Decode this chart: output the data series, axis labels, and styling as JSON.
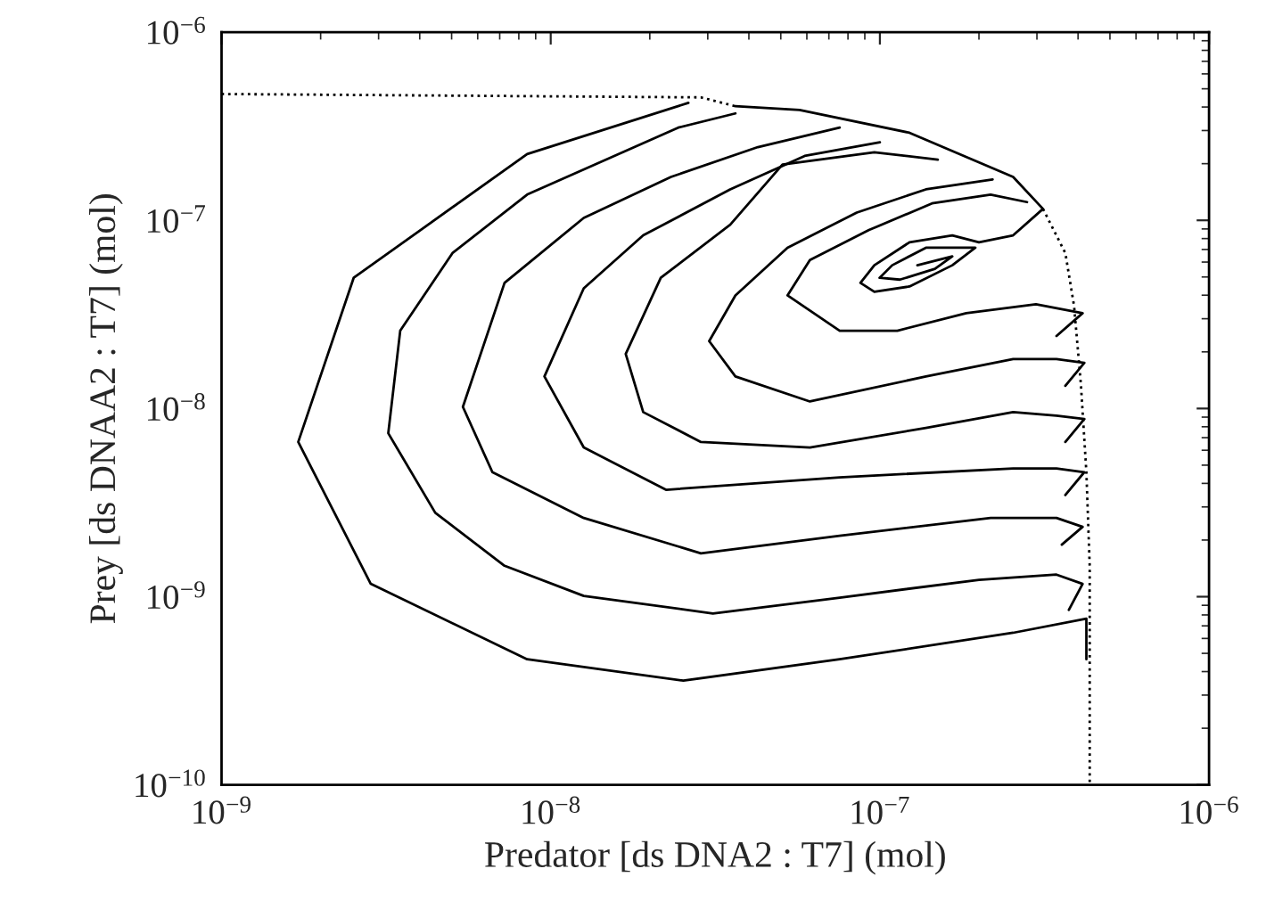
{
  "chart_data": {
    "type": "line",
    "xlabel": "Predator [ds DNA2 : T7] (mol)",
    "ylabel": "Prey [ds DNAA2 : T7] (mol)",
    "log": "xy",
    "xlim": [
      1e-09,
      1e-06
    ],
    "ylim": [
      1e-10,
      1e-06
    ],
    "xticks": [
      {
        "value": 1e-09,
        "label": "10$^{−9}$"
      },
      {
        "value": 1e-08,
        "label": "10$^{−8}$"
      },
      {
        "value": 1e-07,
        "label": "10$^{−7}$"
      },
      {
        "value": 1e-06,
        "label": "10$^{−6}$"
      }
    ],
    "yticks": [
      {
        "value": 1e-10,
        "label": "10$^{−10}$"
      },
      {
        "value": 1e-09,
        "label": "10$^{−9}$"
      },
      {
        "value": 1e-08,
        "label": "10$^{−8}$"
      },
      {
        "value": 1e-07,
        "label": "10$^{−7}$"
      },
      {
        "value": 1e-06,
        "label": "10$^{−6}$"
      }
    ],
    "grid": false,
    "line_style": "solid",
    "series": [
      {
        "color": "#000000",
        "x": [
          4.24e-07,
          4.24e-07,
          2.54e-07,
          7.55e-08,
          2.53e-08,
          8.48e-09,
          2.84e-09,
          1.71e-09,
          2.52e-09,
          8.48e-09,
          2.62e-08
        ],
        "values": [
          4.65e-10,
          7.64e-10,
          6.43e-10,
          4.65e-10,
          3.58e-10,
          4.65e-10,
          1.17e-09,
          6.64e-09,
          4.95e-08,
          2.25e-07,
          4.21e-07
        ]
      },
      {
        "color": "#000000",
        "x": [
          3.75e-07,
          4.13e-07,
          3.44e-07,
          2e-07,
          7.55e-08,
          3.11e-08,
          1.26e-08,
          7.24e-09,
          4.46e-09,
          3.21e-09,
          3.49e-09,
          5.03e-09,
          8.48e-09,
          1.61e-08,
          2.44e-08,
          3.64e-08
        ],
        "values": [
          8.51e-10,
          1.17e-09,
          1.31e-09,
          1.23e-09,
          9.89e-10,
          8.15e-10,
          1.01e-09,
          1.46e-09,
          2.79e-09,
          7.39e-09,
          2.59e-08,
          6.7e-08,
          1.37e-07,
          2.25e-07,
          3.11e-07,
          3.7e-07
        ]
      },
      {
        "color": "#000000",
        "x": [
          3.57e-07,
          4.13e-07,
          3.44e-07,
          2.17e-07,
          7.55e-08,
          2.86e-08,
          1.26e-08,
          6.65e-09,
          5.41e-09,
          7.24e-09,
          1.26e-08,
          2.32e-08,
          4.26e-08,
          7.55e-08
        ],
        "values": [
          1.89e-09,
          2.35e-09,
          2.62e-09,
          2.62e-09,
          2.11e-09,
          1.7e-09,
          2.62e-09,
          4.59e-09,
          1.02e-08,
          4.65e-08,
          1.03e-07,
          1.7e-07,
          2.45e-07,
          3.11e-07
        ]
      },
      {
        "color": "#000000",
        "x": [
          3.66e-07,
          4.18e-07,
          3.44e-07,
          2.54e-07,
          7.55e-08,
          2.24e-08,
          1.26e-08,
          9.57e-09,
          1.26e-08,
          1.91e-08,
          3.51e-08,
          5.91e-08,
          1e-07
        ],
        "values": [
          3.47e-09,
          4.59e-09,
          4.8e-09,
          4.8e-09,
          4.31e-09,
          3.7e-09,
          6.21e-09,
          1.48e-08,
          4.35e-08,
          8.32e-08,
          1.46e-07,
          2.2e-07,
          2.6e-07
        ]
      },
      {
        "color": "#000000",
        "x": [
          3.66e-07,
          4.18e-07,
          3.44e-07,
          2.54e-07,
          1.38e-07,
          6.13e-08,
          2.86e-08,
          1.91e-08,
          1.69e-08,
          2.16e-08,
          3.51e-08,
          5.06e-08,
          9.62e-08,
          1.5e-07
        ],
        "values": [
          6.64e-09,
          8.79e-09,
          9.17e-09,
          9.57e-09,
          7.89e-09,
          6.21e-09,
          6.64e-09,
          9.57e-09,
          1.95e-08,
          4.95e-08,
          9.48e-08,
          1.98e-07,
          2.3e-07,
          2.1e-07
        ]
      },
      {
        "color": "#000000",
        "x": [
          3.66e-07,
          4.18e-07,
          3.44e-07,
          2.54e-07,
          1.38e-07,
          6.13e-08,
          3.64e-08,
          3.03e-08,
          3.64e-08,
          5.24e-08,
          8.51e-08,
          1.38e-07,
          2.2e-07
        ],
        "values": [
          1.32e-08,
          1.75e-08,
          1.83e-08,
          1.83e-08,
          1.48e-08,
          1.09e-08,
          1.48e-08,
          2.28e-08,
          3.99e-08,
          7.15e-08,
          1.1e-07,
          1.46e-07,
          1.65e-07
        ]
      },
      {
        "color": "#000000",
        "x": [
          3.44e-07,
          4.13e-07,
          2.98e-07,
          1.83e-07,
          1.13e-07,
          7.55e-08,
          5.24e-08,
          6.13e-08,
          9.27e-08,
          1.44e-07,
          2.17e-07,
          2.8e-07
        ],
        "values": [
          2.43e-08,
          3.21e-08,
          3.58e-08,
          3.21e-08,
          2.59e-08,
          2.59e-08,
          3.99e-08,
          6.15e-08,
          8.88e-08,
          1.23e-07,
          1.37e-07,
          1.25e-07
        ]
      },
      {
        "color": "#000000",
        "x": [
          3.64e-08,
          5.7e-08,
          1.23e-07,
          2.54e-07,
          3.13e-07,
          2.54e-07,
          2e-07,
          1.66e-07,
          1.23e-07,
          9.62e-08,
          8.73e-08,
          9.62e-08,
          1.23e-07,
          1.66e-07,
          1.95e-07,
          1.77e-07,
          1.38e-07,
          1.09e-07,
          9.98e-08,
          1.15e-07,
          1.47e-07,
          1.66e-07,
          1.3e-07
        ],
        "values": [
          4.04e-07,
          3.86e-07,
          2.92e-07,
          1.7e-07,
          1.15e-07,
          8.32e-08,
          7.64e-08,
          8.32e-08,
          7.64e-08,
          5.77e-08,
          4.65e-08,
          4.17e-08,
          4.45e-08,
          5.77e-08,
          7.15e-08,
          7.15e-08,
          7.15e-08,
          5.77e-08,
          4.95e-08,
          4.84e-08,
          5.52e-08,
          6.43e-08,
          5.77e-08
        ]
      },
      {
        "color": "#000000",
        "line_style": "dotted",
        "x": [
          1e-09,
          2.86e-08,
          3.64e-08
        ],
        "values": [
          4.69e-07,
          4.5e-07,
          4.04e-07
        ]
      },
      {
        "color": "#000000",
        "line_style": "dotted",
        "x": [
          3.13e-07,
          3.66e-07,
          3.89e-07,
          4.08e-07,
          4.24e-07,
          4.34e-07,
          4.34e-07
        ],
        "values": [
          1.15e-07,
          6.7e-08,
          3.51e-08,
          1.35e-08,
          4.59e-09,
          1.46e-09,
          1e-10
        ]
      }
    ]
  }
}
